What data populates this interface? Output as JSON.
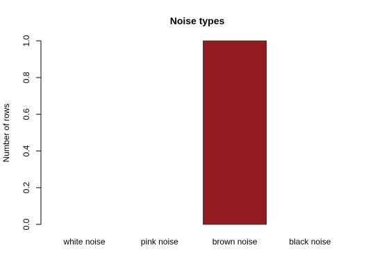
{
  "chart_data": {
    "type": "bar",
    "title": "Noise types",
    "xlabel": "",
    "ylabel": "Number of rows",
    "categories": [
      "white noise",
      "pink noise",
      "brown noise",
      "black noise"
    ],
    "values": [
      0,
      0,
      1,
      0
    ],
    "ylim": [
      0,
      1.0
    ],
    "yticks": [
      "0.0",
      "0.2",
      "0.4",
      "0.6",
      "0.8",
      "1.0"
    ],
    "bar_color": "#931c22",
    "grid": false
  }
}
